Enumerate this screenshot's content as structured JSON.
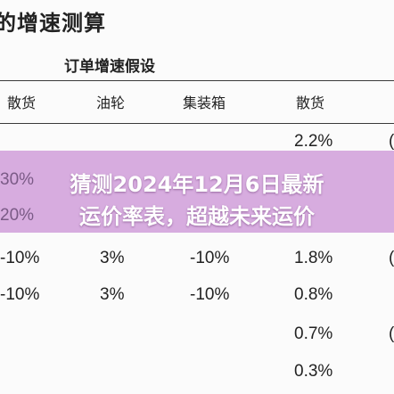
{
  "page": {
    "title": "的增速测算",
    "subheader": "订单增速假设"
  },
  "columns": [
    "散货",
    "油轮",
    "集装箱",
    "散货"
  ],
  "rows": [
    [
      "",
      "",
      "",
      "2.2%"
    ],
    [
      "30%",
      "",
      "",
      ""
    ],
    [
      "20%",
      "",
      "",
      ""
    ],
    [
      "-10%",
      "3%",
      "-10%",
      "1.8%"
    ],
    [
      "-10%",
      "3%",
      "-10%",
      "0.8%"
    ],
    [
      "",
      "",
      "",
      "0.7%"
    ],
    [
      "",
      "",
      "",
      "0.3%"
    ]
  ],
  "edge_glyph": "(",
  "overlay": {
    "line1": "猜测2024年12月6日最新",
    "line2": "运价率表，超越未来运价"
  }
}
